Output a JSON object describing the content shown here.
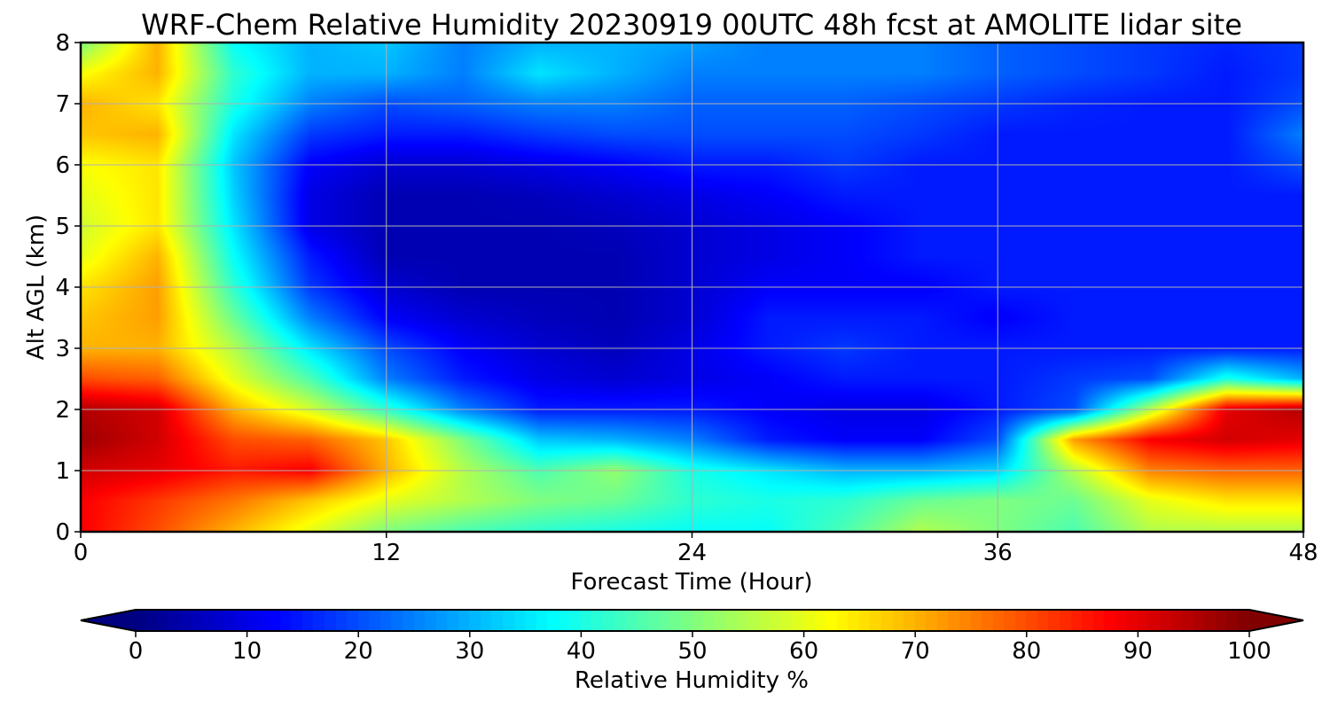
{
  "chart_data": {
    "type": "heatmap",
    "title": "WRF-Chem Relative Humidity 20230919 00UTC 48h fcst at AMOLITE lidar site",
    "xlabel": "Forecast Time (Hour)",
    "ylabel": "Alt AGL (km)",
    "xlim": [
      0,
      48
    ],
    "ylim": [
      0,
      8
    ],
    "x_ticks": [
      0,
      12,
      24,
      36,
      48
    ],
    "y_ticks": [
      0,
      1,
      2,
      3,
      4,
      5,
      6,
      7,
      8
    ],
    "grid": true,
    "colormap": "jet",
    "colorbar": {
      "label": "Relative Humidity %",
      "range": [
        0,
        100
      ],
      "ticks": [
        0,
        10,
        20,
        30,
        40,
        50,
        60,
        70,
        80,
        90,
        100
      ],
      "orientation": "horizontal",
      "extend": "both"
    },
    "x": [
      0,
      3,
      6,
      9,
      12,
      15,
      18,
      21,
      24,
      27,
      30,
      33,
      36,
      39,
      42,
      45,
      48
    ],
    "y": [
      0,
      0.5,
      1,
      1.5,
      2,
      2.5,
      3,
      3.5,
      4,
      4.5,
      5,
      5.5,
      6,
      6.5,
      7,
      7.5,
      8
    ],
    "z": [
      [
        88,
        80,
        70,
        60,
        50,
        45,
        42,
        40,
        38,
        38,
        45,
        55,
        50,
        45,
        55,
        55,
        55
      ],
      [
        88,
        82,
        76,
        68,
        60,
        55,
        50,
        48,
        42,
        40,
        42,
        48,
        50,
        48,
        60,
        65,
        65
      ],
      [
        92,
        90,
        85,
        88,
        70,
        55,
        45,
        52,
        40,
        35,
        30,
        30,
        33,
        55,
        75,
        78,
        78
      ],
      [
        97,
        92,
        80,
        78,
        68,
        50,
        32,
        30,
        25,
        15,
        12,
        12,
        20,
        72,
        88,
        92,
        90
      ],
      [
        95,
        92,
        70,
        58,
        42,
        25,
        15,
        15,
        15,
        12,
        10,
        10,
        15,
        20,
        55,
        90,
        95
      ],
      [
        80,
        78,
        60,
        45,
        25,
        15,
        10,
        8,
        10,
        12,
        15,
        15,
        15,
        18,
        20,
        40,
        30
      ],
      [
        70,
        70,
        55,
        35,
        20,
        12,
        8,
        6,
        10,
        15,
        18,
        15,
        15,
        15,
        15,
        15,
        15
      ],
      [
        68,
        72,
        48,
        25,
        12,
        8,
        6,
        5,
        8,
        15,
        15,
        15,
        12,
        15,
        15,
        15,
        15
      ],
      [
        65,
        72,
        42,
        18,
        8,
        5,
        5,
        5,
        8,
        12,
        12,
        12,
        15,
        15,
        15,
        15,
        15
      ],
      [
        60,
        70,
        38,
        15,
        5,
        5,
        5,
        5,
        8,
        10,
        12,
        15,
        15,
        15,
        15,
        15,
        15
      ],
      [
        58,
        65,
        35,
        10,
        5,
        5,
        5,
        6,
        8,
        10,
        12,
        15,
        15,
        15,
        15,
        15,
        15
      ],
      [
        60,
        65,
        33,
        10,
        5,
        5,
        6,
        8,
        10,
        12,
        15,
        15,
        15,
        15,
        15,
        15,
        15
      ],
      [
        62,
        65,
        32,
        12,
        8,
        8,
        10,
        12,
        15,
        15,
        18,
        15,
        15,
        15,
        15,
        15,
        20
      ],
      [
        68,
        70,
        35,
        18,
        15,
        15,
        18,
        20,
        20,
        20,
        20,
        18,
        15,
        15,
        15,
        15,
        25
      ],
      [
        70,
        65,
        40,
        25,
        20,
        22,
        25,
        25,
        22,
        22,
        22,
        20,
        18,
        16,
        15,
        15,
        20
      ],
      [
        62,
        70,
        42,
        30,
        30,
        25,
        35,
        30,
        25,
        25,
        25,
        25,
        22,
        20,
        18,
        15,
        18
      ],
      [
        50,
        70,
        38,
        30,
        32,
        25,
        30,
        30,
        28,
        25,
        25,
        25,
        22,
        20,
        18,
        16,
        18
      ]
    ]
  }
}
